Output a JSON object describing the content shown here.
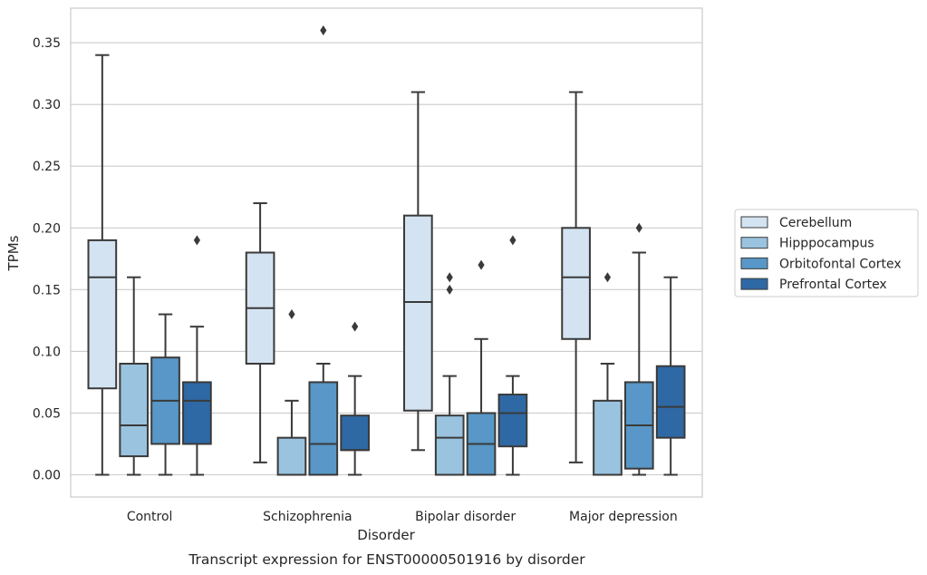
{
  "chart_data": {
    "type": "box",
    "title": "",
    "caption": "Transcript expression for ENST00000501916 by disorder",
    "xlabel": "Disorder",
    "ylabel": "TPMs",
    "ylim": [
      -0.018,
      0.378
    ],
    "yticks": [
      "0.00",
      "0.05",
      "0.10",
      "0.15",
      "0.20",
      "0.25",
      "0.30",
      "0.35"
    ],
    "grid": true,
    "legend_position": "right",
    "categories": [
      "Control",
      "Schizophrenia",
      "Bipolar disorder",
      "Major depression"
    ],
    "series": [
      {
        "name": "Cerebellum",
        "color": "#d3e3f2",
        "boxes": [
          {
            "whisker_low": 0.0,
            "q1": 0.07,
            "median": 0.16,
            "q3": 0.19,
            "whisker_high": 0.34,
            "outliers": []
          },
          {
            "whisker_low": 0.01,
            "q1": 0.09,
            "median": 0.135,
            "q3": 0.18,
            "whisker_high": 0.22,
            "outliers": []
          },
          {
            "whisker_low": 0.02,
            "q1": 0.052,
            "median": 0.14,
            "q3": 0.21,
            "whisker_high": 0.31,
            "outliers": []
          },
          {
            "whisker_low": 0.01,
            "q1": 0.11,
            "median": 0.16,
            "q3": 0.2,
            "whisker_high": 0.31,
            "outliers": []
          }
        ]
      },
      {
        "name": "Hipppocampus",
        "color": "#9ac3df",
        "boxes": [
          {
            "whisker_low": 0.0,
            "q1": 0.015,
            "median": 0.04,
            "q3": 0.09,
            "whisker_high": 0.16,
            "outliers": []
          },
          {
            "whisker_low": 0.0,
            "q1": 0.0,
            "median": 0.0,
            "q3": 0.03,
            "whisker_high": 0.06,
            "outliers": [
              0.13
            ]
          },
          {
            "whisker_low": 0.0,
            "q1": 0.0,
            "median": 0.03,
            "q3": 0.048,
            "whisker_high": 0.08,
            "outliers": [
              0.15,
              0.16
            ]
          },
          {
            "whisker_low": 0.0,
            "q1": 0.0,
            "median": 0.0,
            "q3": 0.06,
            "whisker_high": 0.09,
            "outliers": [
              0.16
            ]
          }
        ]
      },
      {
        "name": "Orbitofontal Cortex",
        "color": "#5897c7",
        "boxes": [
          {
            "whisker_low": 0.0,
            "q1": 0.025,
            "median": 0.06,
            "q3": 0.095,
            "whisker_high": 0.13,
            "outliers": []
          },
          {
            "whisker_low": 0.0,
            "q1": 0.0,
            "median": 0.025,
            "q3": 0.075,
            "whisker_high": 0.09,
            "outliers": [
              0.36
            ]
          },
          {
            "whisker_low": 0.0,
            "q1": 0.0,
            "median": 0.025,
            "q3": 0.05,
            "whisker_high": 0.11,
            "outliers": [
              0.17
            ]
          },
          {
            "whisker_low": 0.0,
            "q1": 0.005,
            "median": 0.04,
            "q3": 0.075,
            "whisker_high": 0.18,
            "outliers": [
              0.2
            ]
          }
        ]
      },
      {
        "name": "Prefrontal Cortex",
        "color": "#2e69a5",
        "boxes": [
          {
            "whisker_low": 0.0,
            "q1": 0.025,
            "median": 0.06,
            "q3": 0.075,
            "whisker_high": 0.12,
            "outliers": [
              0.19
            ]
          },
          {
            "whisker_low": 0.0,
            "q1": 0.02,
            "median": 0.02,
            "q3": 0.048,
            "whisker_high": 0.08,
            "outliers": [
              0.12
            ]
          },
          {
            "whisker_low": 0.0,
            "q1": 0.023,
            "median": 0.05,
            "q3": 0.065,
            "whisker_high": 0.08,
            "outliers": [
              0.19
            ]
          },
          {
            "whisker_low": 0.0,
            "q1": 0.03,
            "median": 0.055,
            "q3": 0.088,
            "whisker_high": 0.16,
            "outliers": []
          }
        ]
      }
    ]
  }
}
